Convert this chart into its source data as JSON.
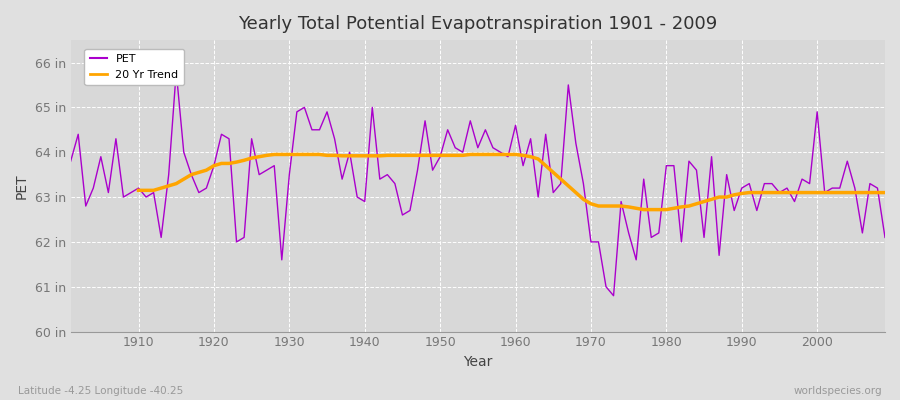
{
  "title": "Yearly Total Potential Evapotranspiration 1901 - 2009",
  "xlabel": "Year",
  "ylabel": "PET",
  "subtitle_left": "Latitude -4.25 Longitude -40.25",
  "subtitle_right": "worldspecies.org",
  "ylim": [
    60,
    66.5
  ],
  "yticks": [
    60,
    61,
    62,
    63,
    64,
    65,
    66
  ],
  "ytick_labels": [
    "60 in",
    "61 in",
    "62 in",
    "63 in",
    "64 in",
    "65 in",
    "66 in"
  ],
  "pet_color": "#AA00CC",
  "trend_color": "#FFA500",
  "bg_color": "#E0E0E0",
  "plot_bg_color": "#D8D8D8",
  "grid_color": "#FFFFFF",
  "years": [
    1901,
    1902,
    1903,
    1904,
    1905,
    1906,
    1907,
    1908,
    1909,
    1910,
    1911,
    1912,
    1913,
    1914,
    1915,
    1916,
    1917,
    1918,
    1919,
    1920,
    1921,
    1922,
    1923,
    1924,
    1925,
    1926,
    1927,
    1928,
    1929,
    1930,
    1931,
    1932,
    1933,
    1934,
    1935,
    1936,
    1937,
    1938,
    1939,
    1940,
    1941,
    1942,
    1943,
    1944,
    1945,
    1946,
    1947,
    1948,
    1949,
    1950,
    1951,
    1952,
    1953,
    1954,
    1955,
    1956,
    1957,
    1958,
    1959,
    1960,
    1961,
    1962,
    1963,
    1964,
    1965,
    1966,
    1967,
    1968,
    1969,
    1970,
    1971,
    1972,
    1973,
    1974,
    1975,
    1976,
    1977,
    1978,
    1979,
    1980,
    1981,
    1982,
    1983,
    1984,
    1985,
    1986,
    1987,
    1988,
    1989,
    1990,
    1991,
    1992,
    1993,
    1994,
    1995,
    1996,
    1997,
    1998,
    1999,
    2000,
    2001,
    2002,
    2003,
    2004,
    2005,
    2006,
    2007,
    2008,
    2009
  ],
  "pet": [
    63.8,
    64.4,
    62.8,
    63.2,
    63.9,
    63.1,
    64.3,
    63.0,
    63.1,
    63.2,
    63.0,
    63.1,
    62.1,
    63.5,
    65.8,
    64.0,
    63.5,
    63.1,
    63.2,
    63.7,
    64.4,
    64.3,
    62.0,
    62.1,
    64.3,
    63.5,
    63.6,
    63.7,
    61.6,
    63.5,
    64.9,
    65.0,
    64.5,
    64.5,
    64.9,
    64.3,
    63.4,
    64.0,
    63.0,
    62.9,
    65.0,
    63.4,
    63.5,
    63.3,
    62.6,
    62.7,
    63.6,
    64.7,
    63.6,
    63.9,
    64.5,
    64.1,
    64.0,
    64.7,
    64.1,
    64.5,
    64.1,
    64.0,
    63.9,
    64.6,
    63.7,
    64.3,
    63.0,
    64.4,
    63.1,
    63.3,
    65.5,
    64.2,
    63.3,
    62.0,
    62.0,
    61.0,
    60.8,
    62.9,
    62.2,
    61.6,
    63.4,
    62.1,
    62.2,
    63.7,
    63.7,
    62.0,
    63.8,
    63.6,
    62.1,
    63.9,
    61.7,
    63.5,
    62.7,
    63.2,
    63.3,
    62.7,
    63.3,
    63.3,
    63.1,
    63.2,
    62.9,
    63.4,
    63.3,
    64.9,
    63.1,
    63.2,
    63.2,
    63.8,
    63.2,
    62.2,
    63.3,
    63.2,
    62.1
  ],
  "trend_years": [
    1910,
    1911,
    1912,
    1913,
    1914,
    1915,
    1916,
    1917,
    1918,
    1919,
    1920,
    1921,
    1922,
    1923,
    1924,
    1925,
    1926,
    1927,
    1928,
    1929,
    1930,
    1931,
    1932,
    1933,
    1934,
    1935,
    1936,
    1937,
    1938,
    1939,
    1940,
    1941,
    1942,
    1943,
    1944,
    1945,
    1946,
    1947,
    1948,
    1949,
    1950,
    1951,
    1952,
    1953,
    1954,
    1955,
    1956,
    1957,
    1958,
    1959,
    1960,
    1961,
    1962,
    1963,
    1964,
    1965,
    1966,
    1967,
    1968,
    1969,
    1970,
    1971,
    1972,
    1973,
    1974,
    1975,
    1976,
    1977,
    1978,
    1979,
    1980,
    1981,
    1982,
    1983,
    1984,
    1985,
    1986,
    1987,
    1988,
    1989,
    1990,
    1991,
    1992,
    1993,
    1994,
    1995,
    1996,
    1997,
    1998,
    1999,
    2000,
    2001,
    2002,
    2003,
    2004,
    2005,
    2006,
    2007,
    2008,
    2009
  ],
  "trend": [
    63.15,
    63.15,
    63.15,
    63.2,
    63.25,
    63.3,
    63.4,
    63.5,
    63.55,
    63.6,
    63.7,
    63.75,
    63.75,
    63.78,
    63.82,
    63.87,
    63.9,
    63.93,
    63.95,
    63.95,
    63.95,
    63.95,
    63.95,
    63.95,
    63.95,
    63.93,
    63.93,
    63.92,
    63.92,
    63.92,
    63.92,
    63.92,
    63.92,
    63.93,
    63.93,
    63.93,
    63.93,
    63.93,
    63.93,
    63.93,
    63.93,
    63.93,
    63.93,
    63.93,
    63.95,
    63.95,
    63.95,
    63.95,
    63.95,
    63.95,
    63.95,
    63.93,
    63.9,
    63.85,
    63.7,
    63.55,
    63.4,
    63.25,
    63.1,
    62.95,
    62.85,
    62.8,
    62.8,
    62.8,
    62.8,
    62.78,
    62.75,
    62.72,
    62.72,
    62.72,
    62.72,
    62.75,
    62.78,
    62.8,
    62.85,
    62.9,
    62.95,
    63.0,
    63.0,
    63.05,
    63.08,
    63.1,
    63.1,
    63.1,
    63.1,
    63.1,
    63.1,
    63.1,
    63.1,
    63.1,
    63.1,
    63.1,
    63.1,
    63.1,
    63.1,
    63.1,
    63.1,
    63.1,
    63.1,
    63.1
  ]
}
